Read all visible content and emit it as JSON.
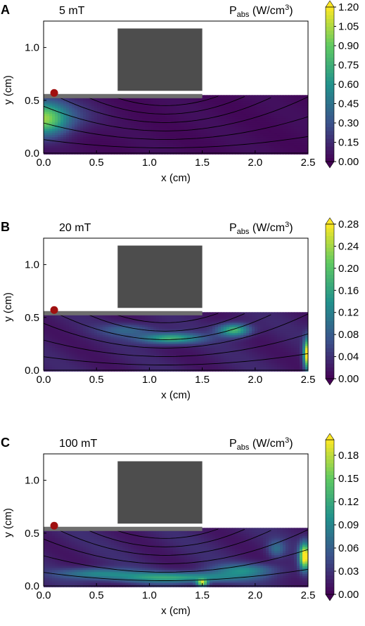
{
  "figure": {
    "cbar_colors": [
      "#440154",
      "#3b528b",
      "#21918c",
      "#5ec962",
      "#fde725"
    ],
    "wafer_color": "#4d4d4d",
    "plate_color": "#6e6e6e",
    "marker_color": "#a01010",
    "magnet_label": "",
    "cbar_title_main": "P",
    "cbar_title_sub": "abs",
    "cbar_title_unit": "(W/cm",
    "cbar_title_sup": "3",
    "cbar_title_close": ")"
  },
  "chart_data": [
    {
      "type": "heatmap",
      "panel_label": "A",
      "condition": "5 mT",
      "xlabel": "x (cm)",
      "ylabel": "y (cm)",
      "xlim": [
        0,
        2.5
      ],
      "ylim": [
        0,
        1.25
      ],
      "xticks": [
        "0.0",
        "0.5",
        "1.0",
        "1.5",
        "2.0",
        "2.5"
      ],
      "yticks": [
        "0.0",
        "0.5",
        "1.0"
      ],
      "colorbar_ticks": [
        "0.00",
        "0.15",
        "0.30",
        "0.45",
        "0.60",
        "0.75",
        "0.90",
        "1.05",
        "1.20"
      ],
      "colorbar_range": [
        0,
        1.2
      ],
      "hotspots": [
        {
          "x": 0.0,
          "y": 0.33,
          "sx": 0.22,
          "sy": 0.16,
          "value": 0.95
        },
        {
          "x": 0.3,
          "y": 0.35,
          "sx": 0.25,
          "sy": 0.15,
          "value": 0.15
        }
      ],
      "background_level": 0.04
    },
    {
      "type": "heatmap",
      "panel_label": "B",
      "condition": "20 mT",
      "xlabel": "x (cm)",
      "ylabel": "y (cm)",
      "xlim": [
        0,
        2.5
      ],
      "ylim": [
        0,
        1.25
      ],
      "xticks": [
        "0.0",
        "0.5",
        "1.0",
        "1.5",
        "2.0",
        "2.5"
      ],
      "yticks": [
        "0.0",
        "0.5",
        "1.0"
      ],
      "colorbar_ticks": [
        "0.00",
        "0.04",
        "0.08",
        "0.12",
        "0.16",
        "0.20",
        "0.24",
        "0.28"
      ],
      "colorbar_range": [
        0,
        0.28
      ],
      "hotspots": [
        {
          "x": 1.2,
          "y": 0.3,
          "sx": 0.28,
          "sy": 0.05,
          "value": 0.16
        },
        {
          "x": 1.8,
          "y": 0.38,
          "sx": 0.15,
          "sy": 0.06,
          "value": 0.17
        },
        {
          "x": 0.8,
          "y": 0.38,
          "sx": 0.25,
          "sy": 0.06,
          "value": 0.07
        },
        {
          "x": 2.5,
          "y": 0.15,
          "sx": 0.04,
          "sy": 0.14,
          "value": 0.3
        }
      ],
      "background_level": 0.025
    },
    {
      "type": "heatmap",
      "panel_label": "C",
      "condition": "100 mT",
      "xlabel": "x (cm)",
      "ylabel": "y (cm)",
      "xlim": [
        0,
        2.5
      ],
      "ylim": [
        0,
        1.25
      ],
      "xticks": [
        "0.0",
        "0.5",
        "1.0",
        "1.5",
        "2.0",
        "2.5"
      ],
      "yticks": [
        "0.0",
        "0.5",
        "1.0"
      ],
      "colorbar_ticks": [
        "0.00",
        "0.03",
        "0.06",
        "0.09",
        "0.12",
        "0.15",
        "0.18"
      ],
      "colorbar_range": [
        0,
        0.2
      ],
      "hotspots": [
        {
          "x": 1.25,
          "y": 0.08,
          "sx": 0.6,
          "sy": 0.05,
          "value": 0.1
        },
        {
          "x": 0.5,
          "y": 0.12,
          "sx": 0.35,
          "sy": 0.05,
          "value": 0.07
        },
        {
          "x": 1.9,
          "y": 0.15,
          "sx": 0.3,
          "sy": 0.06,
          "value": 0.07
        },
        {
          "x": 2.47,
          "y": 0.28,
          "sx": 0.05,
          "sy": 0.12,
          "value": 0.2
        },
        {
          "x": 2.2,
          "y": 0.35,
          "sx": 0.08,
          "sy": 0.08,
          "value": 0.05
        },
        {
          "x": 1.5,
          "y": 0.03,
          "sx": 0.05,
          "sy": 0.03,
          "value": 0.15
        }
      ],
      "background_level": 0.02
    }
  ]
}
